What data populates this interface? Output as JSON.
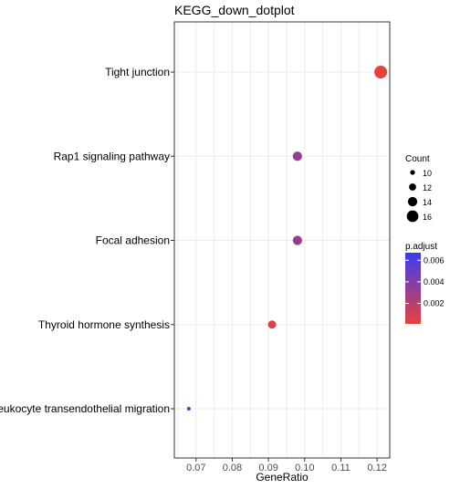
{
  "chart_data": {
    "type": "scatter",
    "title": "KEGG_down_dotplot",
    "xlabel": "GeneRatio",
    "ylabel": "",
    "xlim": [
      0.064,
      0.1235
    ],
    "x_ticks": [
      0.07,
      0.08,
      0.09,
      0.1,
      0.11,
      0.12
    ],
    "x_tick_labels": [
      "0.07",
      "0.08",
      "0.09",
      "0.10",
      "0.11",
      "0.12"
    ],
    "grid": true,
    "categories": [
      "Tight junction",
      "Rap1 signaling pathway",
      "Focal adhesion",
      "Thyroid hormone synthesis",
      "Leukocyte transendothelial migration"
    ],
    "points": [
      {
        "term": "Tight junction",
        "gene_ratio": 0.121,
        "count": 17,
        "p_adjust": 0.0001
      },
      {
        "term": "Rap1 signaling pathway",
        "gene_ratio": 0.098,
        "count": 14,
        "p_adjust": 0.0032
      },
      {
        "term": "Focal adhesion",
        "gene_ratio": 0.098,
        "count": 14,
        "p_adjust": 0.0032
      },
      {
        "term": "Thyroid hormone synthesis",
        "gene_ratio": 0.091,
        "count": 13,
        "p_adjust": 0.0006
      },
      {
        "term": "Leukocyte transendothelial migration",
        "gene_ratio": 0.068,
        "count": 9,
        "p_adjust": 0.0067
      }
    ],
    "size_legend": {
      "title": "Count",
      "values": [
        10,
        12,
        14,
        16
      ],
      "labels": [
        "10",
        "12",
        "14",
        "16"
      ]
    },
    "color_legend": {
      "title": "p.adjust",
      "range": [
        0.0001,
        0.0067
      ],
      "ticks": [
        0.002,
        0.004,
        0.006
      ],
      "tick_labels": [
        "0.002",
        "0.004",
        "0.006"
      ],
      "color_low": "#e8413a",
      "color_high": "#3a3cf2"
    },
    "legend_position": "right"
  },
  "colors": {
    "grid": "#ebebeb",
    "panel_border": "#333333",
    "text": "#000000",
    "tick_text": "#4d4d4d"
  }
}
